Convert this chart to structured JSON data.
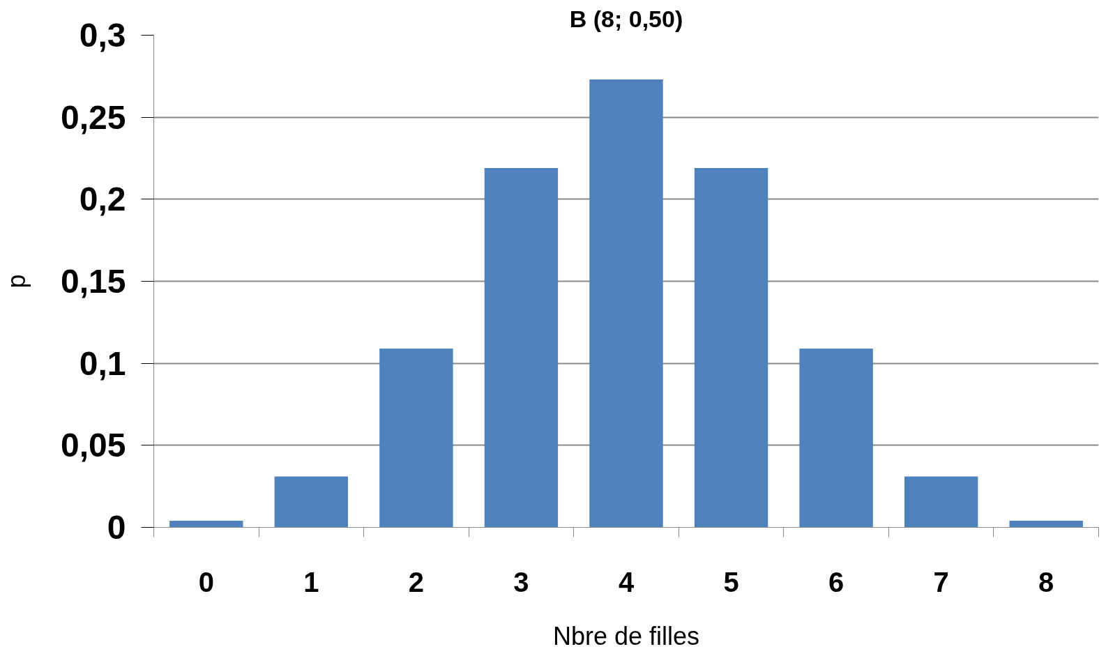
{
  "chart_data": {
    "type": "bar",
    "title": "B (8; 0,50)",
    "xlabel": "Nbre de filles",
    "ylabel": "p",
    "categories": [
      "0",
      "1",
      "2",
      "3",
      "4",
      "5",
      "6",
      "7",
      "8"
    ],
    "values": [
      0.004,
      0.031,
      0.109,
      0.219,
      0.273,
      0.219,
      0.109,
      0.031,
      0.004
    ],
    "color": "#4f81bd",
    "ylim": [
      0,
      0.3
    ],
    "yticks": [
      {
        "value": 0,
        "label": "0"
      },
      {
        "value": 0.05,
        "label": "0,05"
      },
      {
        "value": 0.1,
        "label": "0,1"
      },
      {
        "value": 0.15,
        "label": "0,15"
      },
      {
        "value": 0.2,
        "label": "0,2"
      },
      {
        "value": 0.25,
        "label": "0,25"
      },
      {
        "value": 0.3,
        "label": "0,3"
      }
    ],
    "grid": "y"
  }
}
